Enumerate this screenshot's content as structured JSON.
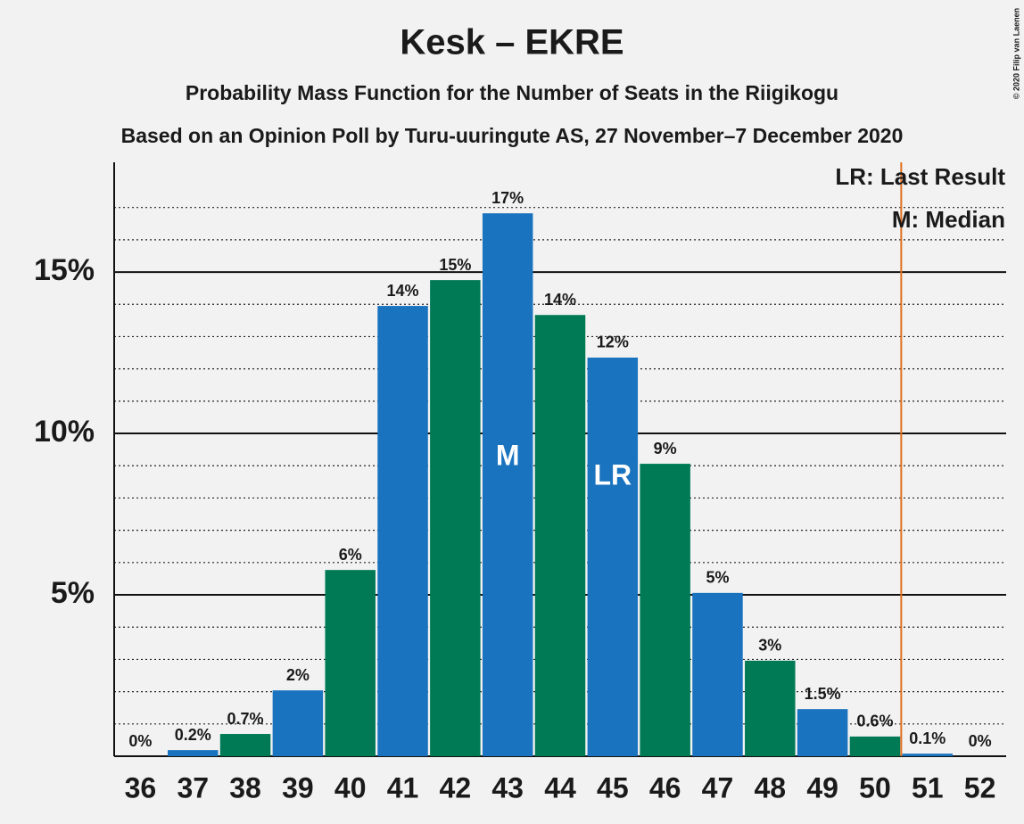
{
  "chart_data": {
    "type": "bar",
    "title": "Kesk – EKRE",
    "subtitle": "Probability Mass Function for the Number of Seats in the Riigikogu",
    "subtitle2": "Based on an Opinion Poll by Turu-uuringute AS, 27 November–7 December 2020",
    "copyright": "© 2020 Filip van Laenen",
    "categories": [
      "36",
      "37",
      "38",
      "39",
      "40",
      "41",
      "42",
      "43",
      "44",
      "45",
      "46",
      "47",
      "48",
      "49",
      "50",
      "51",
      "52"
    ],
    "values": [
      0,
      0.19,
      0.69,
      2.04,
      5.77,
      13.95,
      14.75,
      16.82,
      13.67,
      12.35,
      9.06,
      5.06,
      2.96,
      1.46,
      0.61,
      0.08,
      0
    ],
    "value_labels": [
      "0%",
      "0.2%",
      "0.7%",
      "2%",
      "6%",
      "14%",
      "15%",
      "17%",
      "14%",
      "12%",
      "9%",
      "5%",
      "3%",
      "1.5%",
      "0.6%",
      "0.1%",
      "0%"
    ],
    "colors": [
      "#1a73bf",
      "#1a73bf",
      "#007a55",
      "#1a73bf",
      "#007a55",
      "#1a73bf",
      "#007a55",
      "#1a73bf",
      "#007a55",
      "#1a73bf",
      "#007a55",
      "#1a73bf",
      "#007a55",
      "#1a73bf",
      "#007a55",
      "#1a73bf",
      "#007a55"
    ],
    "ylim": [
      0,
      18.4
    ],
    "yticks": [
      {
        "value": 5,
        "label": "5%"
      },
      {
        "value": 10,
        "label": "10%"
      },
      {
        "value": 15,
        "label": "15%"
      }
    ],
    "minor_yticks": [
      1,
      2,
      3,
      4,
      6,
      7,
      8,
      9,
      11,
      12,
      13,
      14,
      16,
      17
    ],
    "median": {
      "category": "43",
      "label": "M"
    },
    "last_result": {
      "category": "45",
      "label": "LR"
    },
    "threshold": {
      "category": "51",
      "color": "#e07020"
    },
    "legend": [
      "LR: Last Result",
      "M: Median"
    ]
  }
}
